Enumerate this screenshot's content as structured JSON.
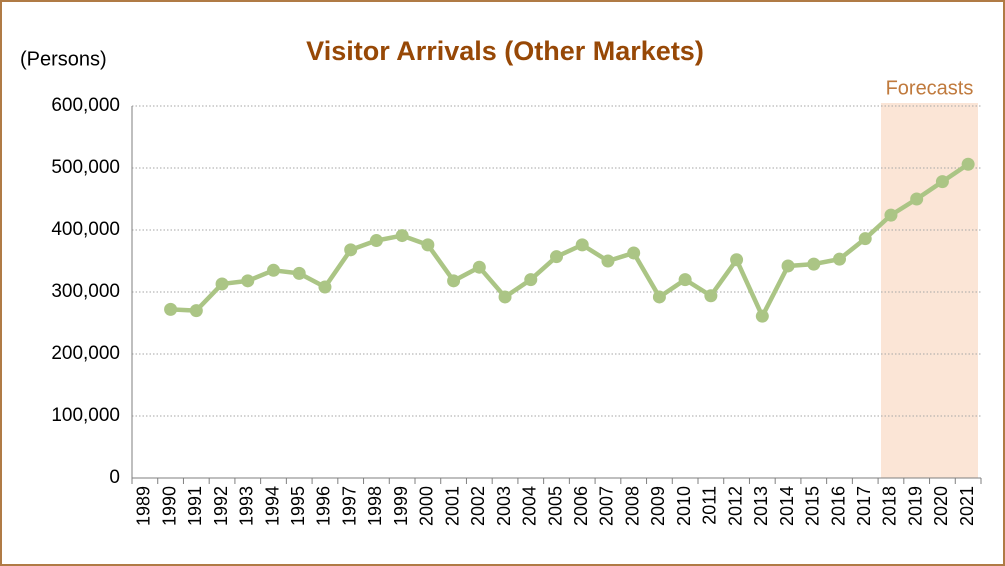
{
  "chart_data": {
    "type": "line",
    "title": "Visitor Arrivals (Other Markets)",
    "y_axis_label": "(Persons)",
    "categories": [
      "1989",
      "1990",
      "1991",
      "1992",
      "1993",
      "1994",
      "1995",
      "1996",
      "1997",
      "1998",
      "1999",
      "2000",
      "2001",
      "2002",
      "2003",
      "2004",
      "2005",
      "2006",
      "2007",
      "2008",
      "2009",
      "2010",
      "2011",
      "2012",
      "2013",
      "2014",
      "2015",
      "2016",
      "2017",
      "2018",
      "2019",
      "2020",
      "2021"
    ],
    "series": [
      {
        "name": "Other Markets",
        "color": "#abc585",
        "values": [
          null,
          272000,
          270000,
          313000,
          318000,
          335000,
          330000,
          308000,
          368000,
          383000,
          391000,
          376000,
          318000,
          340000,
          292000,
          320000,
          357000,
          376000,
          350000,
          363000,
          292000,
          320000,
          294000,
          352000,
          261000,
          342000,
          345000,
          353000,
          386000,
          424000,
          450000,
          478000,
          506000
        ]
      }
    ],
    "ylim": [
      0,
      600000
    ],
    "yticks": [
      0,
      {
        "value": 100000,
        "label": "100,000"
      },
      {
        "value": 200000,
        "label": "200,000"
      },
      {
        "value": 300000,
        "label": "300,000"
      },
      {
        "value": 400000,
        "label": "400,000"
      },
      {
        "value": 500000,
        "label": "500,000"
      },
      {
        "value": 600000,
        "label": "600,000"
      }
    ],
    "grid": true,
    "shaded_region": {
      "from": "2018",
      "to": "2021",
      "label": "Forecasts",
      "color": "#fbe5d6"
    }
  }
}
